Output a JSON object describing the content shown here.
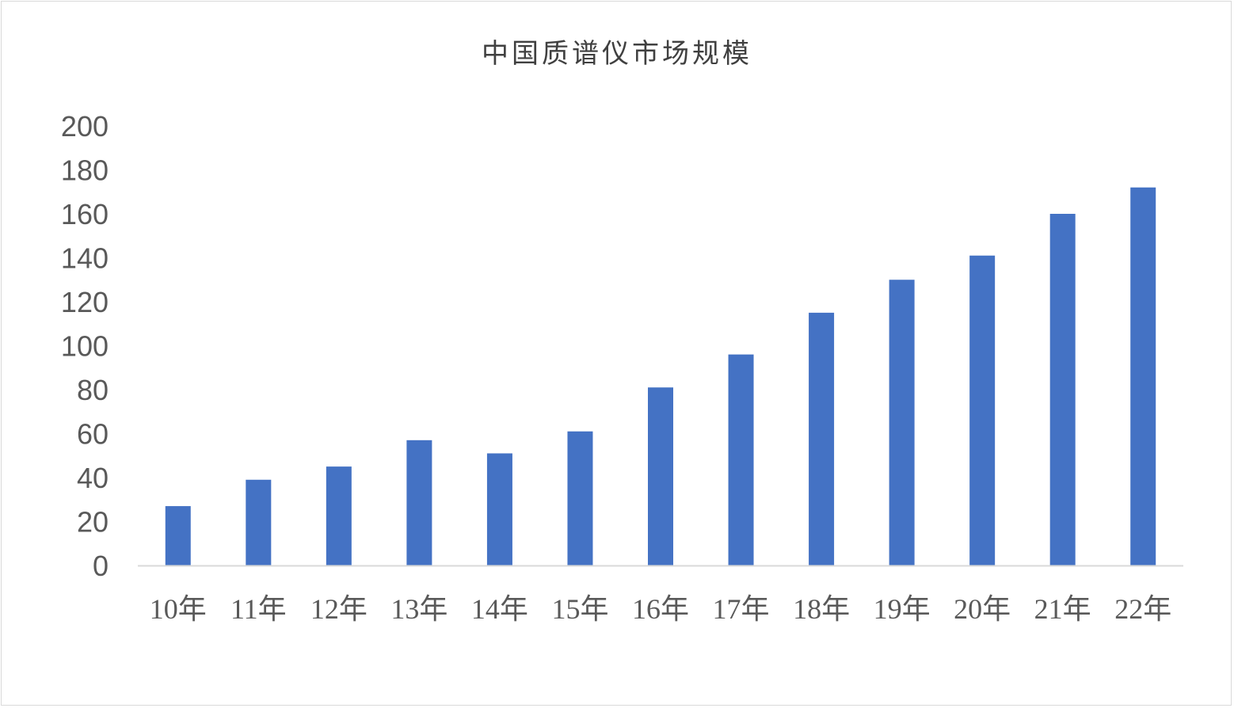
{
  "chart_data": {
    "type": "bar",
    "title": "中国质谱仪市场规模",
    "xlabel": "",
    "ylabel": "",
    "categories": [
      "10年",
      "11年",
      "12年",
      "13年",
      "14年",
      "15年",
      "16年",
      "17年",
      "18年",
      "19年",
      "20年",
      "21年",
      "22年"
    ],
    "values": [
      27,
      39,
      45,
      57,
      51,
      61,
      81,
      96,
      115,
      130,
      141,
      160,
      172
    ],
    "ylim": [
      0,
      200
    ],
    "yticks": [
      0,
      20,
      40,
      60,
      80,
      100,
      120,
      140,
      160,
      180,
      200
    ],
    "grid": false,
    "legend": "none",
    "bar_color": "#4472C4",
    "axis_color": "#d9d9d9"
  }
}
